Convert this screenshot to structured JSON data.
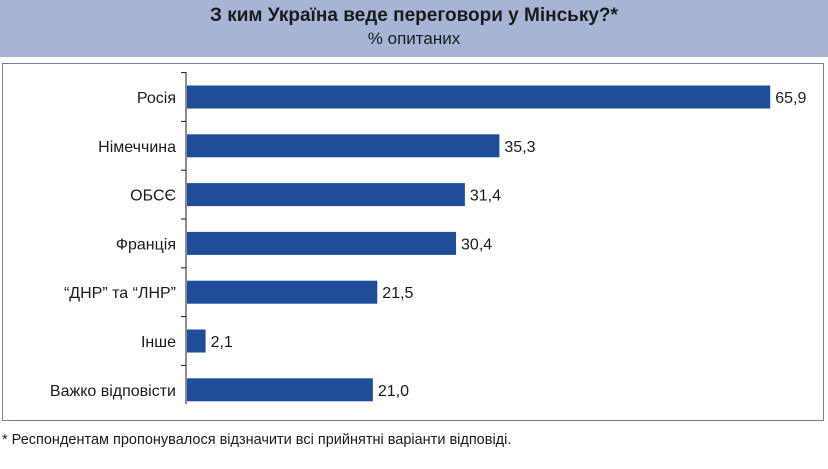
{
  "header": {
    "title": "З ким Україна веде переговори у Мінську?*",
    "subtitle": "% опитаних"
  },
  "footnote": "* Респондентам пропонувалося відзначити всі прийнятні варіанти відповіді.",
  "colors": {
    "header_bg": "#a6b4d6",
    "bar": "#1f4e99",
    "axis": "#1a1a1a",
    "panel_border": "#6f7fa8"
  },
  "chart_data": {
    "type": "bar",
    "orientation": "horizontal",
    "title": "З ким Україна веде переговори у Мінську?*",
    "subtitle": "% опитаних",
    "categories": [
      "Росія",
      "Німеччина",
      "ОБСЄ",
      "Франція",
      "“ДНР” та “ЛНР”",
      "Інше",
      "Важко відповісти"
    ],
    "values": [
      65.9,
      35.3,
      31.4,
      30.4,
      21.5,
      2.1,
      21.0
    ],
    "value_labels": [
      "65,9",
      "35,3",
      "31,4",
      "30,4",
      "21,5",
      "2,1",
      "21,0"
    ],
    "xlim": [
      0,
      70
    ],
    "grid": false,
    "legend": "none"
  }
}
